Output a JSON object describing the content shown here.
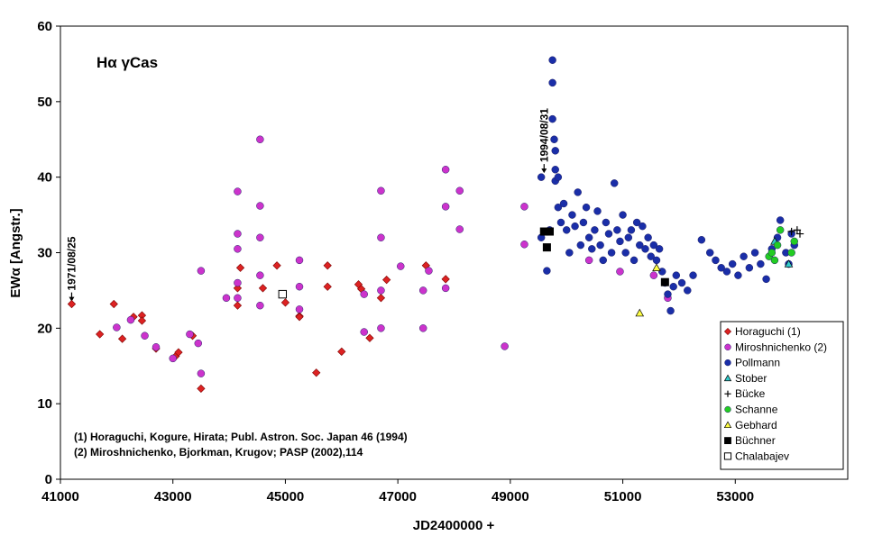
{
  "chart_data": {
    "type": "scatter",
    "title": "Hα γCas",
    "xlabel": "JD2400000 +",
    "ylabel": "EWα [Angstr.]",
    "xlim": [
      41000,
      55000
    ],
    "ylim": [
      0,
      60
    ],
    "xticks": [
      41000,
      43000,
      45000,
      47000,
      49000,
      51000,
      53000
    ],
    "yticks": [
      0,
      10,
      20,
      30,
      40,
      50,
      60
    ],
    "xtick_labels": [
      "41000",
      "43000",
      "45000",
      "47000",
      "49000",
      "51000",
      "53000"
    ],
    "ytick_labels": [
      "0",
      "10",
      "20",
      "30",
      "40",
      "50",
      "60"
    ],
    "grid": false,
    "legend_position": "bottom-right",
    "annotations": [
      {
        "text": "1971/08/25",
        "x": 41200,
        "y": 24.5
      },
      {
        "text": "1994/08/31",
        "x": 49600,
        "y": 41.5
      }
    ],
    "references": [
      "(1) Horaguchi, Kogure, Hirata; Publ. Astron. Soc. Japan 46 (1994)",
      "(2) Miroshnichenko, Bjorkman, Krugov; PASP (2002),114"
    ],
    "series": [
      {
        "name": "Horaguchi (1)",
        "marker": "diamond",
        "color": "#dd2222",
        "points": [
          [
            41200,
            23.2
          ],
          [
            41700,
            19.2
          ],
          [
            41950,
            23.2
          ],
          [
            42100,
            18.6
          ],
          [
            42300,
            21.5
          ],
          [
            42450,
            21.7
          ],
          [
            42450,
            21.0
          ],
          [
            42700,
            17.3
          ],
          [
            43050,
            16.3
          ],
          [
            43100,
            16.8
          ],
          [
            43350,
            19.0
          ],
          [
            43500,
            12.0
          ],
          [
            44150,
            23.0
          ],
          [
            44150,
            25.3
          ],
          [
            44200,
            28.0
          ],
          [
            44600,
            25.3
          ],
          [
            44850,
            28.3
          ],
          [
            45000,
            23.4
          ],
          [
            45250,
            21.6
          ],
          [
            45250,
            21.5
          ],
          [
            45550,
            14.1
          ],
          [
            45750,
            28.3
          ],
          [
            45750,
            25.5
          ],
          [
            46000,
            16.9
          ],
          [
            46300,
            25.8
          ],
          [
            46350,
            25.2
          ],
          [
            46500,
            18.7
          ],
          [
            46700,
            24.0
          ],
          [
            46800,
            26.4
          ],
          [
            47500,
            28.3
          ],
          [
            47850,
            26.5
          ]
        ]
      },
      {
        "name": "Miroshnichenko (2)",
        "marker": "circle",
        "color": "#cc33cc",
        "points": [
          [
            42000,
            20.1
          ],
          [
            42250,
            21.1
          ],
          [
            42500,
            19.0
          ],
          [
            42700,
            17.5
          ],
          [
            43000,
            16.0
          ],
          [
            43300,
            19.2
          ],
          [
            43450,
            18.0
          ],
          [
            43500,
            14.0
          ],
          [
            43500,
            27.6
          ],
          [
            43950,
            24.0
          ],
          [
            44150,
            38.1
          ],
          [
            44150,
            32.5
          ],
          [
            44150,
            30.5
          ],
          [
            44150,
            26.0
          ],
          [
            44150,
            24.0
          ],
          [
            44550,
            45.0
          ],
          [
            44550,
            36.2
          ],
          [
            44550,
            32.0
          ],
          [
            44550,
            27.0
          ],
          [
            44550,
            23.0
          ],
          [
            45250,
            29.0
          ],
          [
            45250,
            25.5
          ],
          [
            45250,
            22.5
          ],
          [
            46400,
            24.5
          ],
          [
            46400,
            19.5
          ],
          [
            46700,
            38.2
          ],
          [
            46700,
            32.0
          ],
          [
            46700,
            25.0
          ],
          [
            46700,
            20.0
          ],
          [
            47050,
            28.2
          ],
          [
            47450,
            25.0
          ],
          [
            47450,
            20.0
          ],
          [
            47550,
            27.6
          ],
          [
            47850,
            41.0
          ],
          [
            47850,
            36.1
          ],
          [
            47850,
            25.3
          ],
          [
            48100,
            38.2
          ],
          [
            48100,
            33.1
          ],
          [
            48900,
            17.6
          ],
          [
            49250,
            36.1
          ],
          [
            49250,
            31.1
          ],
          [
            50400,
            29.0
          ],
          [
            50950,
            27.5
          ],
          [
            51550,
            27.0
          ],
          [
            51800,
            24.0
          ]
        ]
      },
      {
        "name": "Pollmann",
        "marker": "circle",
        "color": "#1a2ea8",
        "points": [
          [
            49550,
            40.0
          ],
          [
            49550,
            32.0
          ],
          [
            49650,
            27.6
          ],
          [
            49700,
            33.0
          ],
          [
            49750,
            55.5
          ],
          [
            49750,
            52.5
          ],
          [
            49750,
            47.7
          ],
          [
            49780,
            45.0
          ],
          [
            49800,
            43.5
          ],
          [
            49800,
            41.0
          ],
          [
            49800,
            39.5
          ],
          [
            49850,
            40.0
          ],
          [
            49850,
            36.0
          ],
          [
            49900,
            34.0
          ],
          [
            49950,
            36.5
          ],
          [
            50000,
            33.0
          ],
          [
            50050,
            30.0
          ],
          [
            50100,
            35.0
          ],
          [
            50150,
            33.5
          ],
          [
            50200,
            38.0
          ],
          [
            50250,
            31.0
          ],
          [
            50300,
            34.0
          ],
          [
            50350,
            36.0
          ],
          [
            50400,
            32.0
          ],
          [
            50450,
            30.5
          ],
          [
            50500,
            33.0
          ],
          [
            50550,
            35.5
          ],
          [
            50600,
            31.0
          ],
          [
            50650,
            29.0
          ],
          [
            50700,
            34.0
          ],
          [
            50750,
            32.5
          ],
          [
            50800,
            30.0
          ],
          [
            50850,
            39.2
          ],
          [
            50900,
            33.0
          ],
          [
            50950,
            31.5
          ],
          [
            51000,
            35.0
          ],
          [
            51050,
            30.0
          ],
          [
            51100,
            32.0
          ],
          [
            51150,
            33.0
          ],
          [
            51200,
            29.0
          ],
          [
            51250,
            34.0
          ],
          [
            51300,
            31.0
          ],
          [
            51350,
            33.5
          ],
          [
            51400,
            30.5
          ],
          [
            51450,
            32.0
          ],
          [
            51500,
            29.5
          ],
          [
            51550,
            31.0
          ],
          [
            51600,
            29.0
          ],
          [
            51650,
            30.5
          ],
          [
            51700,
            27.5
          ],
          [
            51750,
            26.0
          ],
          [
            51800,
            24.5
          ],
          [
            51850,
            22.3
          ],
          [
            51900,
            25.5
          ],
          [
            51950,
            27.0
          ],
          [
            52050,
            26.0
          ],
          [
            52150,
            25.0
          ],
          [
            52250,
            27.0
          ],
          [
            52400,
            31.7
          ],
          [
            52550,
            30.0
          ],
          [
            52650,
            29.0
          ],
          [
            52750,
            28.0
          ],
          [
            52850,
            27.5
          ],
          [
            52950,
            28.5
          ],
          [
            53050,
            27.0
          ],
          [
            53150,
            29.5
          ],
          [
            53250,
            28.0
          ],
          [
            53350,
            30.0
          ],
          [
            53450,
            28.5
          ],
          [
            53550,
            26.5
          ],
          [
            53650,
            30.5
          ],
          [
            53750,
            32.0
          ],
          [
            53800,
            34.3
          ],
          [
            53900,
            30.0
          ],
          [
            53950,
            28.5
          ],
          [
            54000,
            32.5
          ],
          [
            54050,
            31.0
          ]
        ]
      },
      {
        "name": "Stober",
        "marker": "triangle",
        "color": "#33cccc",
        "points": [
          [
            53700,
            31.5
          ],
          [
            53950,
            28.5
          ]
        ]
      },
      {
        "name": "Bücke",
        "marker": "plus",
        "color": "#000000",
        "points": [
          [
            54000,
            32.8
          ],
          [
            54100,
            33.0
          ],
          [
            54150,
            32.5
          ]
        ]
      },
      {
        "name": "Schanne",
        "marker": "circle",
        "color": "#22cc22",
        "points": [
          [
            53600,
            29.5
          ],
          [
            53650,
            30.0
          ],
          [
            53700,
            29.0
          ],
          [
            53750,
            31.0
          ],
          [
            53800,
            33.0
          ],
          [
            54000,
            30.0
          ],
          [
            54050,
            31.5
          ]
        ]
      },
      {
        "name": "Gebhard",
        "marker": "triangle",
        "color": "#ffff44",
        "points": [
          [
            51300,
            22.0
          ],
          [
            51600,
            28.0
          ]
        ]
      },
      {
        "name": "Büchner",
        "marker": "square",
        "color": "#000000",
        "points": [
          [
            49600,
            32.8
          ],
          [
            49650,
            30.7
          ],
          [
            49700,
            32.8
          ],
          [
            51750,
            26.1
          ]
        ]
      },
      {
        "name": "Chalabajev",
        "marker": "square-open",
        "color": "#ffffff",
        "points": [
          [
            44950,
            24.5
          ]
        ]
      }
    ]
  }
}
